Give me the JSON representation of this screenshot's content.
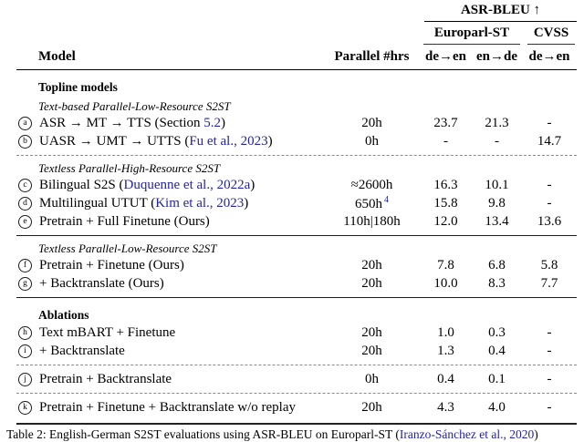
{
  "colors": {
    "link_blue": "#2323a8",
    "rule_dark": "#000000",
    "rule_dashed_gray": "#8a8a8a"
  },
  "table": {
    "header": {
      "group_title": "ASR-BLEU ↑",
      "subgroup_left": "Europarl-ST",
      "subgroup_right": "CVSS",
      "model_label": "Model",
      "hrs_label": "Parallel #hrs",
      "score_cols": [
        "de→en",
        "en→de",
        "de→en"
      ]
    },
    "rows": [
      {
        "type": "section",
        "label": "Topline models"
      },
      {
        "type": "subsection",
        "label": "Text-based Parallel-Low-Resource S2ST"
      },
      {
        "type": "data",
        "letter": "a",
        "label_parts": [
          {
            "t": "ASR → MT → TTS (Section "
          },
          {
            "t": "5.2",
            "link": true
          },
          {
            "t": ")"
          }
        ],
        "hrs": "20h",
        "scores": [
          "23.7",
          "21.3",
          "-"
        ]
      },
      {
        "type": "data",
        "letter": "b",
        "label_parts": [
          {
            "t": "UASR → UMT → UTTS  ("
          },
          {
            "t": "Fu et al., 2023",
            "link": true
          },
          {
            "t": ")"
          }
        ],
        "hrs": "0h",
        "scores": [
          "-",
          "-",
          "14.7"
        ]
      },
      {
        "type": "rule",
        "style": "dashed"
      },
      {
        "type": "subsection",
        "label": "Textless Parallel-High-Resource S2ST"
      },
      {
        "type": "data",
        "letter": "c",
        "label_parts": [
          {
            "t": "Bilingual S2S ("
          },
          {
            "t": "Duquenne et al., 2022a",
            "link": true
          },
          {
            "t": ")"
          }
        ],
        "hrs": "≈2600h",
        "scores": [
          "16.3",
          "10.1",
          "-"
        ]
      },
      {
        "type": "data",
        "letter": "d",
        "label_parts": [
          {
            "t": "Multilingual UTUT ("
          },
          {
            "t": "Kim et al., 2023",
            "link": true
          },
          {
            "t": ")"
          }
        ],
        "hrs": "650h",
        "hrs_sup": "4",
        "scores": [
          "15.8",
          "9.8",
          "-"
        ]
      },
      {
        "type": "data",
        "letter": "e",
        "label_parts": [
          {
            "t": "Pretrain + Full Finetune (Ours)"
          }
        ],
        "hrs": "110h|180h",
        "scores": [
          "12.0",
          "13.4",
          "13.6"
        ]
      },
      {
        "type": "rule",
        "style": "solid"
      },
      {
        "type": "subsection",
        "label": "Textless Parallel-Low-Resource S2ST"
      },
      {
        "type": "data",
        "letter": "f",
        "label_parts": [
          {
            "t": "Pretrain + Finetune (Ours)"
          }
        ],
        "hrs": "20h",
        "scores": [
          "7.8",
          "6.8",
          "5.8"
        ]
      },
      {
        "type": "data",
        "letter": "g",
        "label_parts": [
          {
            "t": "+ Backtranslate (Ours)"
          }
        ],
        "hrs": "20h",
        "scores": [
          "10.0",
          "8.3",
          "7.7"
        ]
      },
      {
        "type": "rule",
        "style": "solid"
      },
      {
        "type": "section",
        "label": "Ablations"
      },
      {
        "type": "data",
        "letter": "h",
        "label_parts": [
          {
            "t": "Text mBART + Finetune"
          }
        ],
        "hrs": "20h",
        "scores": [
          "1.0",
          "0.3",
          "-"
        ]
      },
      {
        "type": "data",
        "letter": "i",
        "label_parts": [
          {
            "t": "+ Backtranslate"
          }
        ],
        "hrs": "20h",
        "scores": [
          "1.3",
          "0.4",
          "-"
        ]
      },
      {
        "type": "rule",
        "style": "dashed"
      },
      {
        "type": "data",
        "letter": "j",
        "label_parts": [
          {
            "t": "Pretrain + Backtranslate"
          }
        ],
        "hrs": "0h",
        "scores": [
          "0.4",
          "0.1",
          "-"
        ]
      },
      {
        "type": "rule",
        "style": "dashed"
      },
      {
        "type": "data",
        "letter": "k",
        "label_parts": [
          {
            "t": "Pretrain + Finetune + Backtranslate w/o replay"
          }
        ],
        "hrs": "20h",
        "scores": [
          "4.3",
          "4.0",
          "-"
        ]
      },
      {
        "type": "rule",
        "style": "thick"
      }
    ]
  },
  "caption": {
    "parts": [
      {
        "t": "Table 2: English-German S2ST evaluations using ASR-BLEU on Europarl-ST ("
      },
      {
        "t": "Iranzo-Sánchez et al., 2020",
        "link": true
      },
      {
        "t": ")"
      }
    ]
  }
}
